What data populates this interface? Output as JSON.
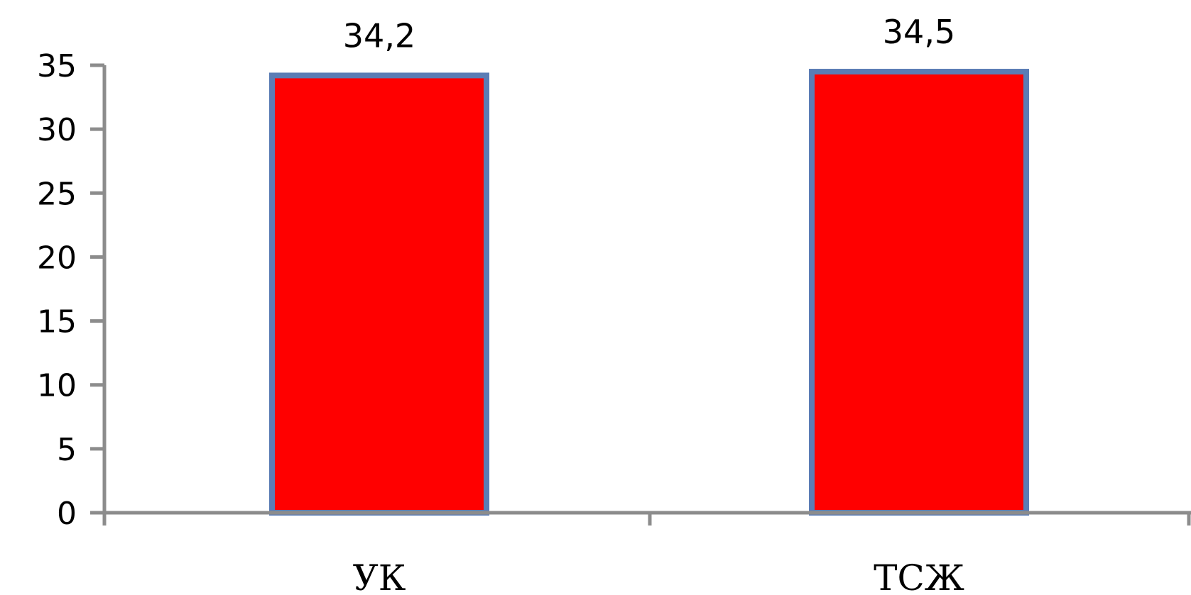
{
  "chart_data": {
    "type": "bar",
    "categories": [
      "УК",
      "ТСЖ"
    ],
    "values": [
      34.2,
      34.5
    ],
    "data_labels": [
      "34,2",
      "34,5"
    ],
    "y_ticks": [
      "0",
      "5",
      "10",
      "15",
      "20",
      "25",
      "30",
      "35"
    ],
    "ylim": [
      0,
      35
    ],
    "title": "",
    "xlabel": "",
    "ylabel": "",
    "grid": false,
    "legend": "none",
    "colors": {
      "bar_fill": "#FF0000",
      "bar_border": "#5B7DB5",
      "axis": "#8C8C8C"
    }
  }
}
